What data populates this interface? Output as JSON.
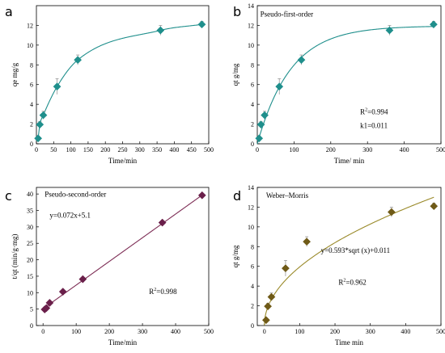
{
  "chart_data": [
    {
      "panel_letter": "a",
      "type": "line",
      "xlabel": "Time/min",
      "ylabel": "qe mg/g",
      "xlim": [
        0,
        500
      ],
      "ylim": [
        0,
        14
      ],
      "xticks": [
        0,
        50,
        100,
        150,
        200,
        250,
        300,
        350,
        400,
        450,
        500
      ],
      "yticks": [
        0,
        2,
        4,
        6,
        8,
        10,
        12
      ],
      "marker": "diamond",
      "marker_color": "#1f8f8c",
      "line_color": "#1f8f8c",
      "fit": "spline",
      "annotations": [],
      "series": [
        {
          "x": [
            5,
            10,
            20,
            60,
            120,
            360,
            480
          ],
          "values": [
            0.55,
            1.95,
            2.9,
            5.8,
            8.5,
            11.5,
            12.1
          ],
          "err": [
            0.2,
            0.3,
            0.4,
            0.8,
            0.5,
            0.5,
            0.3
          ]
        }
      ]
    },
    {
      "panel_letter": "b",
      "type": "line",
      "xlabel": "Time/ min",
      "ylabel": "qt g/mg",
      "xlim": [
        0,
        500
      ],
      "ylim": [
        0,
        14
      ],
      "xticks": [
        0,
        100,
        200,
        300,
        400,
        500
      ],
      "yticks": [
        0,
        2,
        4,
        6,
        8,
        10,
        12,
        14
      ],
      "marker": "diamond",
      "marker_color": "#1f8f8c",
      "line_color": "#1f8f8c",
      "fit": "pfo",
      "fit_params": {
        "qe": 11.95,
        "k1": 0.011
      },
      "annotations": [
        {
          "text": "Pseudo-first-order",
          "x": 8,
          "y": 12.9
        },
        {
          "text": "R",
          "sup": "2",
          "after": "=0.994",
          "x": 280,
          "y": 3.0
        },
        {
          "text": "k1=0.011",
          "x": 280,
          "y": 1.6
        }
      ],
      "series": [
        {
          "x": [
            5,
            10,
            20,
            60,
            120,
            360,
            480
          ],
          "values": [
            0.55,
            1.95,
            2.9,
            5.8,
            8.5,
            11.5,
            12.1
          ],
          "err": [
            0.2,
            0.3,
            0.4,
            0.8,
            0.5,
            0.5,
            0.3
          ]
        }
      ]
    },
    {
      "panel_letter": "c",
      "type": "scatter",
      "xlabel": "Time/min",
      "ylabel": "t/qt (min/g·mg)",
      "xlim": [
        -20,
        500
      ],
      "ylim": [
        0,
        42
      ],
      "xticks": [
        0,
        100,
        200,
        300,
        400,
        500
      ],
      "yticks": [
        0,
        5,
        10,
        15,
        20,
        25,
        30,
        35,
        40
      ],
      "marker": "diamond",
      "marker_color": "#6a1f4a",
      "line_color": "#7d2d55",
      "fit": "linear",
      "fit_params": {
        "slope": 0.072,
        "intercept": 5.1,
        "x_range": [
          0,
          480
        ]
      },
      "annotations": [
        {
          "text": "Pseudo-second-order",
          "x": 5,
          "y": 39.2
        },
        {
          "text": "y=0.072x+5.1",
          "x": 20,
          "y": 32.8
        },
        {
          "text": "R",
          "sup": "2",
          "after": "=0.998",
          "x": 320,
          "y": 9.6
        }
      ],
      "series": [
        {
          "x": [
            5,
            10,
            20,
            60,
            120,
            360,
            480
          ],
          "values": [
            4.9,
            5.3,
            6.9,
            10.3,
            14.1,
            31.3,
            39.6
          ],
          "err": []
        }
      ]
    },
    {
      "panel_letter": "d",
      "type": "scatter",
      "xlabel": "Time min",
      "ylabel": "qt g/mg",
      "xlim": [
        -20,
        500
      ],
      "ylim": [
        0,
        14
      ],
      "xticks": [
        0,
        100,
        200,
        300,
        400,
        500
      ],
      "yticks": [
        0,
        2,
        4,
        6,
        8,
        10,
        12,
        14
      ],
      "marker": "diamond",
      "marker_color": "#6f5a17",
      "line_color": "#9a8a2a",
      "fit": "sqrt",
      "fit_params": {
        "a": 0.593,
        "b": 0.011,
        "x_range": [
          0,
          480
        ]
      },
      "annotations": [
        {
          "text": "Weber–Morris",
          "x": 5,
          "y": 12.95
        },
        {
          "text": "y=0.593*sqrt (x)+0.011",
          "x": 160,
          "y": 7.35
        },
        {
          "text": "R",
          "sup": "2",
          "after": "=0.962",
          "x": 210,
          "y": 4.15
        }
      ],
      "series": [
        {
          "x": [
            5,
            10,
            20,
            60,
            120,
            360,
            480
          ],
          "values": [
            0.55,
            1.95,
            2.9,
            5.8,
            8.5,
            11.5,
            12.1
          ],
          "err": [
            0.2,
            0.3,
            0.4,
            0.8,
            0.5,
            0.5,
            0.3
          ]
        }
      ]
    }
  ]
}
